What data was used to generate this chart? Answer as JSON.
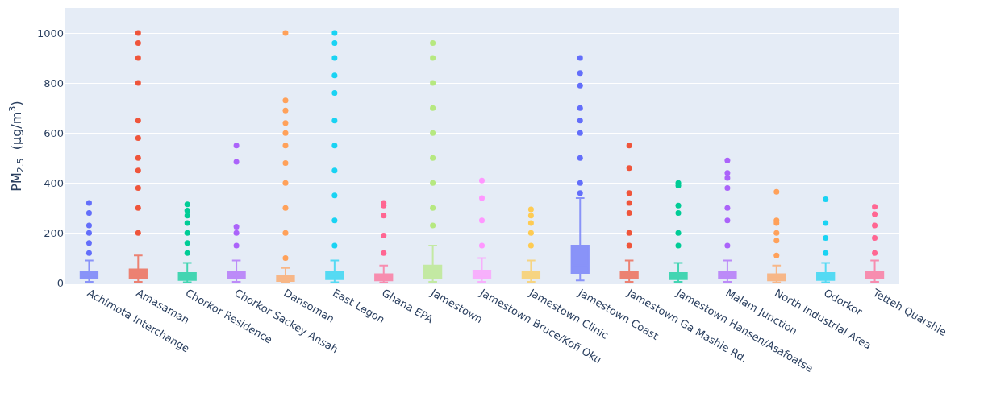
{
  "chart_data": {
    "type": "box",
    "ylabel": "PM$_{2.5}$  (µg/m$^{3}$)",
    "categories": [
      "Achimota Interchange",
      "Amasaman",
      "Chorkor Residence",
      "Chorkor Sackey Ansah",
      "Dansoman",
      "East Legon",
      "Ghana EPA",
      "Jamestown",
      "Jamestown Bruce/Kofi Oku",
      "Jamestown Clinic",
      "Jamestown Coast",
      "Jamestown Ga Mashie Rd.",
      "Jamestown Hansen/Asafoatse",
      "Malam Junction",
      "North Industrial Area",
      "Odorkor",
      "Tetteh Quarshie"
    ],
    "colors": [
      "#636efa",
      "#ef553b",
      "#00cc96",
      "#ab63fa",
      "#ffa15a",
      "#19d3f3",
      "#ff6692",
      "#b6e880",
      "#ff97ff",
      "#fecb52",
      "#636efa",
      "#ef553b",
      "#00cc96",
      "#ab63fa",
      "#ffa15a",
      "#19d3f3",
      "#ff6692"
    ],
    "boxes": [
      {
        "low": 5,
        "q1": 18,
        "median": 28,
        "q3": 45,
        "high": 90,
        "outliers": [
          120,
          160,
          200,
          230,
          280,
          320
        ]
      },
      {
        "low": 5,
        "q1": 20,
        "median": 32,
        "q3": 55,
        "high": 110,
        "outliers": [
          200,
          300,
          380,
          450,
          500,
          580,
          650,
          800,
          900,
          960,
          1000
        ]
      },
      {
        "low": 3,
        "q1": 12,
        "median": 22,
        "q3": 40,
        "high": 80,
        "outliers": [
          120,
          160,
          200,
          240,
          270,
          290,
          315
        ]
      },
      {
        "low": 5,
        "q1": 18,
        "median": 28,
        "q3": 45,
        "high": 90,
        "outliers": [
          150,
          200,
          225,
          485,
          550
        ]
      },
      {
        "low": 2,
        "q1": 8,
        "median": 15,
        "q3": 30,
        "high": 60,
        "outliers": [
          100,
          200,
          300,
          400,
          480,
          550,
          600,
          640,
          690,
          730,
          1000
        ]
      },
      {
        "low": 3,
        "q1": 15,
        "median": 25,
        "q3": 45,
        "high": 90,
        "outliers": [
          150,
          250,
          350,
          450,
          550,
          650,
          760,
          830,
          900,
          960,
          1000
        ]
      },
      {
        "low": 2,
        "q1": 10,
        "median": 18,
        "q3": 35,
        "high": 70,
        "outliers": [
          120,
          190,
          270,
          310,
          320
        ]
      },
      {
        "low": 5,
        "q1": 20,
        "median": 35,
        "q3": 70,
        "high": 150,
        "outliers": [
          230,
          300,
          400,
          500,
          600,
          700,
          800,
          900,
          960
        ]
      },
      {
        "low": 5,
        "q1": 18,
        "median": 28,
        "q3": 50,
        "high": 100,
        "outliers": [
          150,
          250,
          340,
          410
        ]
      },
      {
        "low": 5,
        "q1": 18,
        "median": 28,
        "q3": 45,
        "high": 90,
        "outliers": [
          150,
          200,
          240,
          270,
          295
        ]
      },
      {
        "low": 10,
        "q1": 40,
        "median": 70,
        "q3": 150,
        "high": 340,
        "outliers": [
          360,
          400,
          500,
          600,
          650,
          700,
          790,
          840,
          900
        ]
      },
      {
        "low": 5,
        "q1": 18,
        "median": 28,
        "q3": 45,
        "high": 90,
        "outliers": [
          150,
          200,
          280,
          320,
          360,
          460,
          550
        ]
      },
      {
        "low": 5,
        "q1": 15,
        "median": 25,
        "q3": 40,
        "high": 80,
        "outliers": [
          150,
          200,
          280,
          310,
          390,
          400
        ]
      },
      {
        "low": 5,
        "q1": 18,
        "median": 28,
        "q3": 45,
        "high": 90,
        "outliers": [
          150,
          250,
          300,
          380,
          420,
          440,
          490
        ]
      },
      {
        "low": 2,
        "q1": 10,
        "median": 18,
        "q3": 35,
        "high": 70,
        "outliers": [
          110,
          170,
          200,
          240,
          250,
          365
        ]
      },
      {
        "low": 3,
        "q1": 12,
        "median": 22,
        "q3": 40,
        "high": 80,
        "outliers": [
          120,
          180,
          240,
          335
        ]
      },
      {
        "low": 5,
        "q1": 18,
        "median": 28,
        "q3": 45,
        "high": 90,
        "outliers": [
          120,
          180,
          230,
          275,
          305
        ]
      }
    ],
    "ylim": [
      -5,
      1100
    ],
    "yticks": [
      0,
      200,
      400,
      600,
      800,
      1000
    ],
    "grid": "y",
    "marker": "circle"
  }
}
